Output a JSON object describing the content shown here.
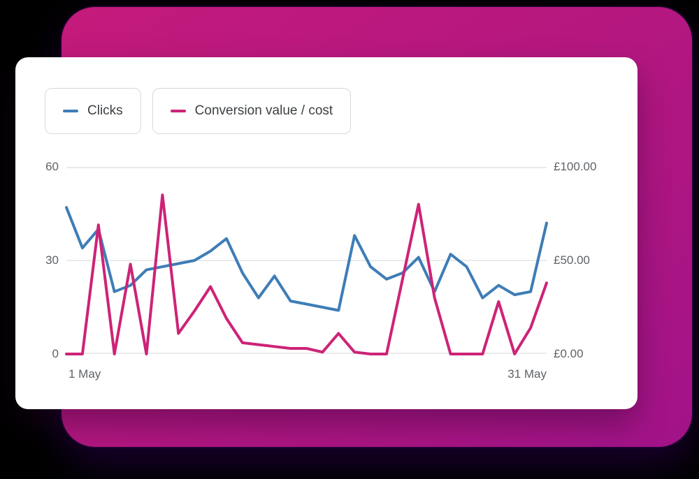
{
  "legend": {
    "items": [
      {
        "label": "Clicks",
        "color": "#3e7db6"
      },
      {
        "label": "Conversion value / cost",
        "color": "#cd2377"
      }
    ]
  },
  "axes": {
    "left_ticks": [
      "60",
      "30",
      "0"
    ],
    "right_ticks": [
      "£100.00",
      "£50.00",
      "£0.00"
    ],
    "x_start": "1 May",
    "x_end": "31 May"
  },
  "colors": {
    "panel_magenta": "#b4177f",
    "card_background": "#ffffff",
    "clicks_blue": "#3e7db6",
    "conversion_pink": "#cd2377"
  },
  "chart_data": {
    "type": "line",
    "x_unit": "day of May",
    "x": [
      1,
      2,
      3,
      4,
      5,
      6,
      7,
      8,
      9,
      10,
      11,
      12,
      13,
      14,
      15,
      16,
      17,
      18,
      19,
      20,
      21,
      22,
      23,
      24,
      25,
      26,
      27,
      28,
      29,
      30,
      31
    ],
    "series": [
      {
        "name": "Clicks",
        "axis": "left",
        "color": "#3e7db6",
        "values": [
          47,
          34,
          40,
          20,
          22,
          27,
          28,
          29,
          30,
          33,
          37,
          26,
          18,
          25,
          17,
          16,
          15,
          14,
          38,
          28,
          24,
          26,
          31,
          20,
          32,
          28,
          18,
          22,
          19,
          20,
          42
        ]
      },
      {
        "name": "Conversion value / cost",
        "axis": "right",
        "color": "#cd2377",
        "values": [
          0,
          0,
          69,
          0,
          48,
          0,
          85,
          11,
          23,
          36,
          19,
          6,
          5,
          4,
          3,
          3,
          1,
          11,
          1,
          0,
          0,
          40,
          80,
          30,
          0,
          0,
          0,
          28,
          0,
          14,
          38
        ]
      }
    ],
    "left_axis": {
      "ticks": [
        0,
        30,
        60
      ],
      "range": [
        0,
        60
      ]
    },
    "right_axis": {
      "ticks": [
        "£0.00",
        "£50.00",
        "£100.00"
      ],
      "range": [
        0,
        100
      ],
      "currency": "£"
    },
    "x_labels": {
      "start": "1 May",
      "end": "31 May"
    },
    "grid": "horizontal",
    "legend_position": "top-left"
  }
}
